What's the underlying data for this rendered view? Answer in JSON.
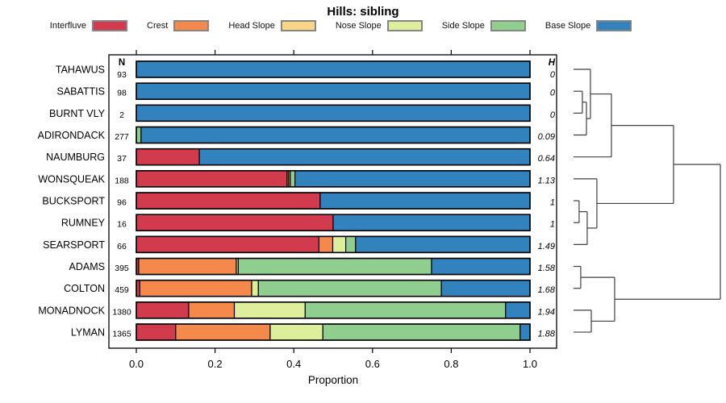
{
  "title": "Hills: sibling",
  "legend": {
    "items": [
      {
        "label": "Interfluve",
        "color": "#D23B4D"
      },
      {
        "label": "Crest",
        "color": "#F5894B"
      },
      {
        "label": "Head Slope",
        "color": "#FBD687"
      },
      {
        "label": "Nose Slope",
        "color": "#DDEF9B"
      },
      {
        "label": "Side Slope",
        "color": "#90CE90"
      },
      {
        "label": "Base Slope",
        "color": "#3182BD"
      }
    ]
  },
  "columns": {
    "n_header": "N",
    "h_header": "H"
  },
  "x_axis": {
    "label": "Proportion",
    "tick_labels": [
      "0.0",
      "0.2",
      "0.4",
      "0.6",
      "0.8",
      "1.0"
    ],
    "tick_values": [
      0,
      0.2,
      0.4,
      0.6,
      0.8,
      1
    ]
  },
  "chart_data": {
    "type": "bar",
    "orientation": "horizontal",
    "stacked": true,
    "title": "Hills: sibling",
    "xlabel": "Proportion",
    "xlim": [
      0,
      1
    ],
    "grid": false,
    "legend_position": "top",
    "series_names": [
      "Interfluve",
      "Crest",
      "Head Slope",
      "Nose Slope",
      "Side Slope",
      "Base Slope"
    ],
    "series_colors": {
      "Interfluve": "#D23B4D",
      "Crest": "#F5894B",
      "Head Slope": "#FBD687",
      "Nose Slope": "#DDEF9B",
      "Side Slope": "#90CE90",
      "Base Slope": "#3182BD"
    },
    "rows": [
      {
        "label": "TAHAWUS",
        "n": 93,
        "h": "0",
        "segments": {
          "Base Slope": 1.0
        }
      },
      {
        "label": "SABATTIS",
        "n": 98,
        "h": "0",
        "segments": {
          "Base Slope": 1.0
        }
      },
      {
        "label": "BURNT VLY",
        "n": 2,
        "h": "0",
        "segments": {
          "Base Slope": 1.0
        }
      },
      {
        "label": "ADIRONDACK",
        "n": 277,
        "h": "0.09",
        "segments": {
          "Side Slope": 0.012,
          "Base Slope": 0.988
        }
      },
      {
        "label": "NAUMBURG",
        "n": 37,
        "h": "0.64",
        "segments": {
          "Interfluve": 0.16,
          "Base Slope": 0.84
        }
      },
      {
        "label": "WONSQUEAK",
        "n": 188,
        "h": "1.13",
        "segments": {
          "Interfluve": 0.383,
          "Crest": 0.004,
          "Head Slope": 0.004,
          "Side Slope": 0.012,
          "Base Slope": 0.597
        }
      },
      {
        "label": "BUCKSPORT",
        "n": 96,
        "h": "1",
        "segments": {
          "Interfluve": 0.467,
          "Base Slope": 0.533
        }
      },
      {
        "label": "RUMNEY",
        "n": 16,
        "h": "1",
        "segments": {
          "Interfluve": 0.5,
          "Base Slope": 0.5
        }
      },
      {
        "label": "SEARSPORT",
        "n": 66,
        "h": "1.49",
        "segments": {
          "Interfluve": 0.464,
          "Crest": 0.035,
          "Nose Slope": 0.033,
          "Side Slope": 0.025,
          "Base Slope": 0.443
        }
      },
      {
        "label": "ADAMS",
        "n": 395,
        "h": "1.58",
        "segments": {
          "Interfluve": 0.006,
          "Crest": 0.248,
          "Nose Slope": 0.005,
          "Side Slope": 0.491,
          "Base Slope": 0.25
        }
      },
      {
        "label": "COLTON",
        "n": 459,
        "h": "1.68",
        "segments": {
          "Interfluve": 0.009,
          "Crest": 0.284,
          "Nose Slope": 0.017,
          "Side Slope": 0.465,
          "Base Slope": 0.225
        }
      },
      {
        "label": "MONADNOCK",
        "n": 1380,
        "h": "1.94",
        "segments": {
          "Interfluve": 0.133,
          "Crest": 0.116,
          "Nose Slope": 0.18,
          "Side Slope": 0.509,
          "Base Slope": 0.062
        }
      },
      {
        "label": "LYMAN",
        "n": 1365,
        "h": "1.88",
        "segments": {
          "Interfluve": 0.1,
          "Crest": 0.24,
          "Nose Slope": 0.134,
          "Side Slope": 0.501,
          "Base Slope": 0.025
        }
      }
    ],
    "dendrogram": {
      "leaf_order": [
        "TAHAWUS",
        "SABATTIS",
        "BURNT VLY",
        "ADIRONDACK",
        "NAUMBURG",
        "WONSQUEAK",
        "BUCKSPORT",
        "RUMNEY",
        "SEARSPORT",
        "ADAMS",
        "COLTON",
        "MONADNOCK",
        "LYMAN"
      ],
      "merges": [
        {
          "id": "M0",
          "a": "L1",
          "b": "L2",
          "height": 0.06
        },
        {
          "id": "M1",
          "a": "M0",
          "b": "L3",
          "height": 0.088
        },
        {
          "id": "M2",
          "a": "L0",
          "b": "M1",
          "height": 0.115
        },
        {
          "id": "M3",
          "a": "M2",
          "b": "L4",
          "height": 0.258
        },
        {
          "id": "M4",
          "a": "L6",
          "b": "L7",
          "height": 0.038
        },
        {
          "id": "M5",
          "a": "M4",
          "b": "L8",
          "height": 0.093
        },
        {
          "id": "M6",
          "a": "L5",
          "b": "M5",
          "height": 0.159
        },
        {
          "id": "M7",
          "a": "M3",
          "b": "M6",
          "height": 0.681
        },
        {
          "id": "M8",
          "a": "L9",
          "b": "L10",
          "height": 0.049
        },
        {
          "id": "M9",
          "a": "L11",
          "b": "L12",
          "height": 0.121
        },
        {
          "id": "M10",
          "a": "M8",
          "b": "M9",
          "height": 0.28
        },
        {
          "id": "M11",
          "a": "M7",
          "b": "M10",
          "height": 1.0
        }
      ]
    }
  }
}
